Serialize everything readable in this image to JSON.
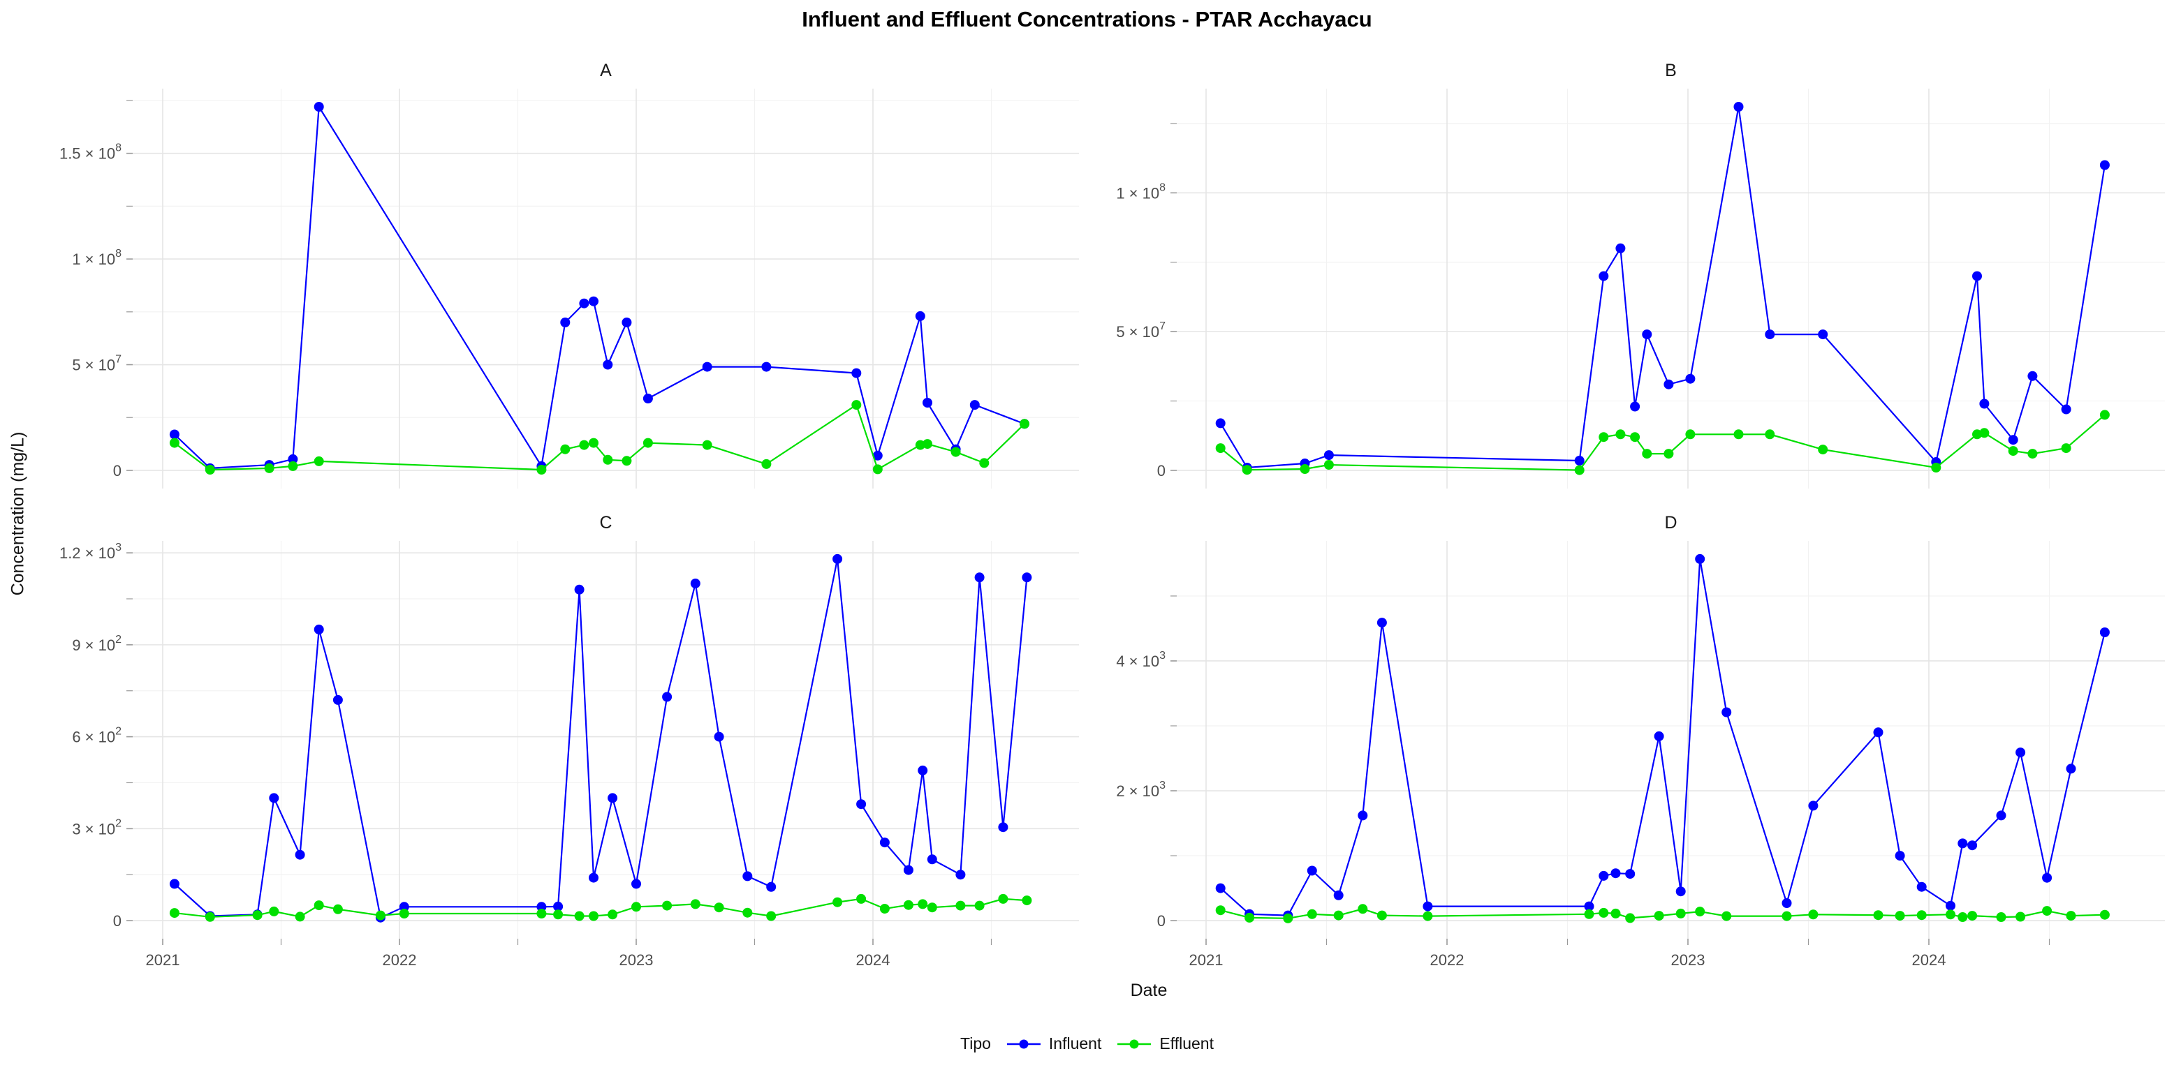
{
  "title": "Influent and Effluent Concentrations - PTAR Acchayacu",
  "axes": {
    "x_label": "Date",
    "y_label": "Concentration (mg/L)"
  },
  "legend": {
    "title": "Tipo",
    "items": [
      {
        "label": "Influent",
        "color": "#0000FF"
      },
      {
        "label": "Effluent",
        "color": "#00DF00"
      }
    ]
  },
  "style": {
    "grid_major": "#e5e5e5",
    "grid_minor": "#f2f2f2",
    "tick_color": "#999999",
    "tick_label_color": "#4d4d4d",
    "facet_label_color": "#1a1a1a",
    "background": "#ffffff"
  },
  "x_axis": {
    "tick_labels": [
      "2021",
      "2022",
      "2023",
      "2024"
    ],
    "ticks": [
      2021,
      2022,
      2023,
      2024
    ],
    "minor": [
      2021.5,
      2022.5,
      2023.5,
      2024.5
    ],
    "range_note": "dates shown as decimal years, axis spans early 2021 to late 2024"
  },
  "chart_data": [
    {
      "type": "line",
      "panel": "A",
      "row": 0,
      "col": 0,
      "ylabel_ticks": [
        "0",
        "5 × 10^7",
        "1 × 10^8",
        "1.5 × 10^8"
      ],
      "ymax": 172000000,
      "yticks": [
        {
          "v": 0,
          "label": "0"
        },
        {
          "v": 50000000,
          "label": "5 × 10^7"
        },
        {
          "v": 100000000,
          "label": "1 × 10^8"
        },
        {
          "v": 150000000,
          "label": "1.5 × 10^8"
        }
      ],
      "yminor": [
        25000000,
        75000000,
        125000000,
        175000000
      ],
      "series": [
        {
          "name": "Influent",
          "points": [
            [
              2021.05,
              17000000
            ],
            [
              2021.2,
              1000000
            ],
            [
              2021.45,
              2600000
            ],
            [
              2021.55,
              5300000
            ],
            [
              2021.66,
              172000000
            ],
            [
              2022.6,
              2000000
            ],
            [
              2022.7,
              70000000
            ],
            [
              2022.78,
              79000000
            ],
            [
              2022.82,
              80000000
            ],
            [
              2022.88,
              50000000
            ],
            [
              2022.96,
              70000000
            ],
            [
              2023.05,
              34000000
            ],
            [
              2023.3,
              49000000
            ],
            [
              2023.55,
              49000000
            ],
            [
              2023.93,
              46000000
            ],
            [
              2024.02,
              7000000
            ],
            [
              2024.2,
              73000000
            ],
            [
              2024.23,
              32000000
            ],
            [
              2024.35,
              10000000
            ],
            [
              2024.43,
              31000000
            ],
            [
              2024.64,
              22000000
            ]
          ]
        },
        {
          "name": "Effluent",
          "points": [
            [
              2021.05,
              13000000
            ],
            [
              2021.2,
              300000
            ],
            [
              2021.45,
              1000000
            ],
            [
              2021.55,
              2000000
            ],
            [
              2021.66,
              4300000
            ],
            [
              2022.6,
              300000
            ],
            [
              2022.7,
              10000000
            ],
            [
              2022.78,
              12000000
            ],
            [
              2022.82,
              13000000
            ],
            [
              2022.88,
              5000000
            ],
            [
              2022.96,
              4500000
            ],
            [
              2023.05,
              13000000
            ],
            [
              2023.3,
              12000000
            ],
            [
              2023.55,
              3000000
            ],
            [
              2023.93,
              31000000
            ],
            [
              2024.02,
              500000
            ],
            [
              2024.2,
              12000000
            ],
            [
              2024.23,
              12500000
            ],
            [
              2024.35,
              8700000
            ],
            [
              2024.47,
              3500000
            ],
            [
              2024.64,
              22000000
            ]
          ]
        }
      ]
    },
    {
      "type": "line",
      "panel": "B",
      "row": 0,
      "col": 1,
      "ylabel_ticks": [
        "0",
        "5 × 10^7",
        "1 × 10^8"
      ],
      "ymax": 131000000,
      "yticks": [
        {
          "v": 0,
          "label": "0"
        },
        {
          "v": 50000000,
          "label": "5 × 10^7"
        },
        {
          "v": 100000000,
          "label": "1 × 10^8"
        }
      ],
      "yminor": [
        25000000,
        75000000,
        125000000
      ],
      "series": [
        {
          "name": "Influent",
          "points": [
            [
              2021.06,
              17000000
            ],
            [
              2021.17,
              1000000
            ],
            [
              2021.41,
              2500000
            ],
            [
              2021.51,
              5500000
            ],
            [
              2022.55,
              3500000
            ],
            [
              2022.65,
              70000000
            ],
            [
              2022.72,
              80000000
            ],
            [
              2022.78,
              23000000
            ],
            [
              2022.83,
              49000000
            ],
            [
              2022.92,
              31000000
            ],
            [
              2023.01,
              33000000
            ],
            [
              2023.21,
              131000000
            ],
            [
              2023.34,
              49000000
            ],
            [
              2023.56,
              49000000
            ],
            [
              2024.03,
              3000000
            ],
            [
              2024.2,
              70000000
            ],
            [
              2024.23,
              24000000
            ],
            [
              2024.35,
              11000000
            ],
            [
              2024.43,
              34000000
            ],
            [
              2024.57,
              22000000
            ],
            [
              2024.73,
              110000000
            ]
          ]
        },
        {
          "name": "Effluent",
          "points": [
            [
              2021.06,
              8000000
            ],
            [
              2021.17,
              200000
            ],
            [
              2021.41,
              500000
            ],
            [
              2021.51,
              2000000
            ],
            [
              2022.55,
              100000
            ],
            [
              2022.65,
              12000000
            ],
            [
              2022.72,
              13000000
            ],
            [
              2022.78,
              12000000
            ],
            [
              2022.83,
              6000000
            ],
            [
              2022.92,
              6000000
            ],
            [
              2023.01,
              13000000
            ],
            [
              2023.21,
              13000000
            ],
            [
              2023.34,
              13000000
            ],
            [
              2023.56,
              7500000
            ],
            [
              2024.03,
              1000000
            ],
            [
              2024.2,
              13000000
            ],
            [
              2024.23,
              13500000
            ],
            [
              2024.35,
              7000000
            ],
            [
              2024.43,
              6000000
            ],
            [
              2024.57,
              8000000
            ],
            [
              2024.73,
              20000000
            ]
          ]
        }
      ]
    },
    {
      "type": "line",
      "panel": "C",
      "row": 1,
      "col": 0,
      "ylabel_ticks": [
        "0",
        "3 × 10^2",
        "6 × 10^2",
        "9 × 10^2",
        "1.2 × 10^3"
      ],
      "ymax": 1180,
      "yticks": [
        {
          "v": 0,
          "label": "0"
        },
        {
          "v": 300,
          "label": "3 × 10^2"
        },
        {
          "v": 600,
          "label": "6 × 10^2"
        },
        {
          "v": 900,
          "label": "9 × 10^2"
        },
        {
          "v": 1200,
          "label": "1.2 × 10^3"
        }
      ],
      "yminor": [
        150,
        450,
        750,
        1050
      ],
      "series": [
        {
          "name": "Influent",
          "points": [
            [
              2021.05,
              120
            ],
            [
              2021.2,
              15
            ],
            [
              2021.4,
              20
            ],
            [
              2021.47,
              400
            ],
            [
              2021.58,
              215
            ],
            [
              2021.66,
              950
            ],
            [
              2021.74,
              720
            ],
            [
              2021.92,
              10
            ],
            [
              2022.02,
              45
            ],
            [
              2022.6,
              45
            ],
            [
              2022.67,
              46
            ],
            [
              2022.76,
              1080
            ],
            [
              2022.82,
              140
            ],
            [
              2022.9,
              400
            ],
            [
              2023.0,
              120
            ],
            [
              2023.13,
              730
            ],
            [
              2023.25,
              1100
            ],
            [
              2023.35,
              600
            ],
            [
              2023.47,
              145
            ],
            [
              2023.57,
              110
            ],
            [
              2023.85,
              1180
            ],
            [
              2023.95,
              380
            ],
            [
              2024.05,
              255
            ],
            [
              2024.15,
              165
            ],
            [
              2024.21,
              490
            ],
            [
              2024.25,
              200
            ],
            [
              2024.37,
              150
            ],
            [
              2024.45,
              1120
            ],
            [
              2024.55,
              305
            ],
            [
              2024.65,
              1120
            ]
          ]
        },
        {
          "name": "Effluent",
          "points": [
            [
              2021.05,
              25
            ],
            [
              2021.2,
              12
            ],
            [
              2021.4,
              18
            ],
            [
              2021.47,
              30
            ],
            [
              2021.58,
              13
            ],
            [
              2021.66,
              50
            ],
            [
              2021.74,
              37
            ],
            [
              2021.92,
              17
            ],
            [
              2022.02,
              23
            ],
            [
              2022.6,
              23
            ],
            [
              2022.67,
              20
            ],
            [
              2022.76,
              15
            ],
            [
              2022.82,
              15
            ],
            [
              2022.9,
              20
            ],
            [
              2023.0,
              45
            ],
            [
              2023.13,
              49
            ],
            [
              2023.25,
              54
            ],
            [
              2023.35,
              43
            ],
            [
              2023.47,
              26
            ],
            [
              2023.57,
              15
            ],
            [
              2023.85,
              60
            ],
            [
              2023.95,
              71
            ],
            [
              2024.05,
              39
            ],
            [
              2024.15,
              51
            ],
            [
              2024.21,
              54
            ],
            [
              2024.25,
              43
            ],
            [
              2024.37,
              49
            ],
            [
              2024.45,
              49
            ],
            [
              2024.55,
              71
            ],
            [
              2024.65,
              66
            ]
          ]
        }
      ]
    },
    {
      "type": "line",
      "panel": "D",
      "row": 1,
      "col": 1,
      "ylabel_ticks": [
        "0",
        "2 × 10^3",
        "4 × 10^3"
      ],
      "ymax": 5570,
      "yticks": [
        {
          "v": 0,
          "label": "0"
        },
        {
          "v": 2000,
          "label": "2 × 10^3"
        },
        {
          "v": 4000,
          "label": "4 × 10^3"
        }
      ],
      "yminor": [
        1000,
        3000,
        5000
      ],
      "series": [
        {
          "name": "Influent",
          "points": [
            [
              2021.06,
              500
            ],
            [
              2021.18,
              100
            ],
            [
              2021.34,
              80
            ],
            [
              2021.44,
              770
            ],
            [
              2021.55,
              390
            ],
            [
              2021.65,
              1620
            ],
            [
              2021.73,
              4590
            ],
            [
              2021.92,
              220
            ],
            [
              2022.59,
              220
            ],
            [
              2022.65,
              690
            ],
            [
              2022.7,
              730
            ],
            [
              2022.76,
              720
            ],
            [
              2022.88,
              2840
            ],
            [
              2022.97,
              450
            ],
            [
              2023.05,
              5570
            ],
            [
              2023.16,
              3210
            ],
            [
              2023.41,
              270
            ],
            [
              2023.52,
              1770
            ],
            [
              2023.79,
              2900
            ],
            [
              2023.88,
              1000
            ],
            [
              2023.97,
              520
            ],
            [
              2024.09,
              230
            ],
            [
              2024.14,
              1190
            ],
            [
              2024.18,
              1160
            ],
            [
              2024.3,
              1620
            ],
            [
              2024.38,
              2590
            ],
            [
              2024.49,
              660
            ],
            [
              2024.59,
              2340
            ],
            [
              2024.73,
              4440
            ]
          ]
        },
        {
          "name": "Effluent",
          "points": [
            [
              2021.06,
              160
            ],
            [
              2021.18,
              45
            ],
            [
              2021.34,
              35
            ],
            [
              2021.44,
              100
            ],
            [
              2021.55,
              80
            ],
            [
              2021.65,
              180
            ],
            [
              2021.73,
              80
            ],
            [
              2021.92,
              70
            ],
            [
              2022.59,
              100
            ],
            [
              2022.65,
              120
            ],
            [
              2022.7,
              110
            ],
            [
              2022.76,
              40
            ],
            [
              2022.88,
              75
            ],
            [
              2022.97,
              110
            ],
            [
              2023.05,
              140
            ],
            [
              2023.16,
              70
            ],
            [
              2023.41,
              70
            ],
            [
              2023.52,
              95
            ],
            [
              2023.79,
              85
            ],
            [
              2023.88,
              75
            ],
            [
              2023.97,
              85
            ],
            [
              2024.09,
              95
            ],
            [
              2024.14,
              55
            ],
            [
              2024.18,
              75
            ],
            [
              2024.3,
              55
            ],
            [
              2024.38,
              60
            ],
            [
              2024.49,
              150
            ],
            [
              2024.59,
              75
            ],
            [
              2024.73,
              90
            ]
          ]
        }
      ]
    }
  ]
}
